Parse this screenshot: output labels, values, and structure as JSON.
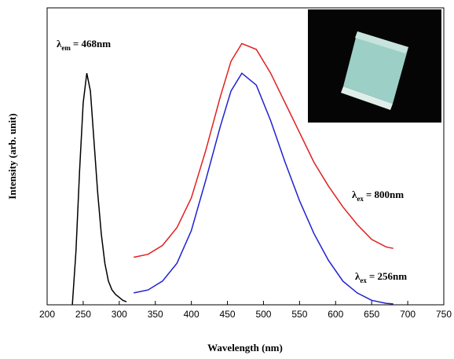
{
  "chart_data": {
    "type": "line",
    "x_label": "Wavelength (nm)",
    "y_label": "Intensity (arb. unit)",
    "xlim": [
      200,
      750
    ],
    "xticks": [
      200,
      250,
      300,
      350,
      400,
      450,
      500,
      550,
      600,
      650,
      700,
      750
    ],
    "ylim": [
      0,
      1
    ],
    "series": [
      {
        "color": "#000000",
        "x": [
          235,
          240,
          245,
          250,
          255,
          260,
          265,
          270,
          275,
          280,
          285,
          290,
          295,
          300,
          305,
          310
        ],
        "values": [
          0,
          0.18,
          0.45,
          0.68,
          0.78,
          0.72,
          0.55,
          0.38,
          0.24,
          0.14,
          0.08,
          0.05,
          0.035,
          0.025,
          0.015,
          0.01
        ]
      },
      {
        "color": "#e02020",
        "x": [
          320,
          340,
          360,
          380,
          400,
          420,
          440,
          455,
          470,
          490,
          510,
          530,
          550,
          570,
          590,
          610,
          630,
          650,
          670,
          680
        ],
        "values": [
          0.16,
          0.17,
          0.2,
          0.26,
          0.36,
          0.52,
          0.7,
          0.82,
          0.88,
          0.86,
          0.78,
          0.68,
          0.58,
          0.48,
          0.4,
          0.33,
          0.27,
          0.22,
          0.195,
          0.19
        ]
      },
      {
        "color": "#2020d0",
        "x": [
          320,
          340,
          360,
          380,
          400,
          420,
          440,
          455,
          470,
          490,
          510,
          530,
          550,
          570,
          590,
          610,
          630,
          650,
          670,
          680
        ],
        "values": [
          0.04,
          0.05,
          0.08,
          0.14,
          0.25,
          0.42,
          0.6,
          0.72,
          0.78,
          0.74,
          0.62,
          0.48,
          0.35,
          0.24,
          0.15,
          0.08,
          0.04,
          0.015,
          0.005,
          0.003
        ]
      }
    ],
    "annotations": [
      {
        "symbol": "λ",
        "subscript": "em",
        "text": "= 468nm"
      },
      {
        "symbol": "λ",
        "subscript": "ex",
        "text": "= 800nm"
      },
      {
        "symbol": "λ",
        "subscript": "ex",
        "text": "= 256nm"
      }
    ]
  }
}
